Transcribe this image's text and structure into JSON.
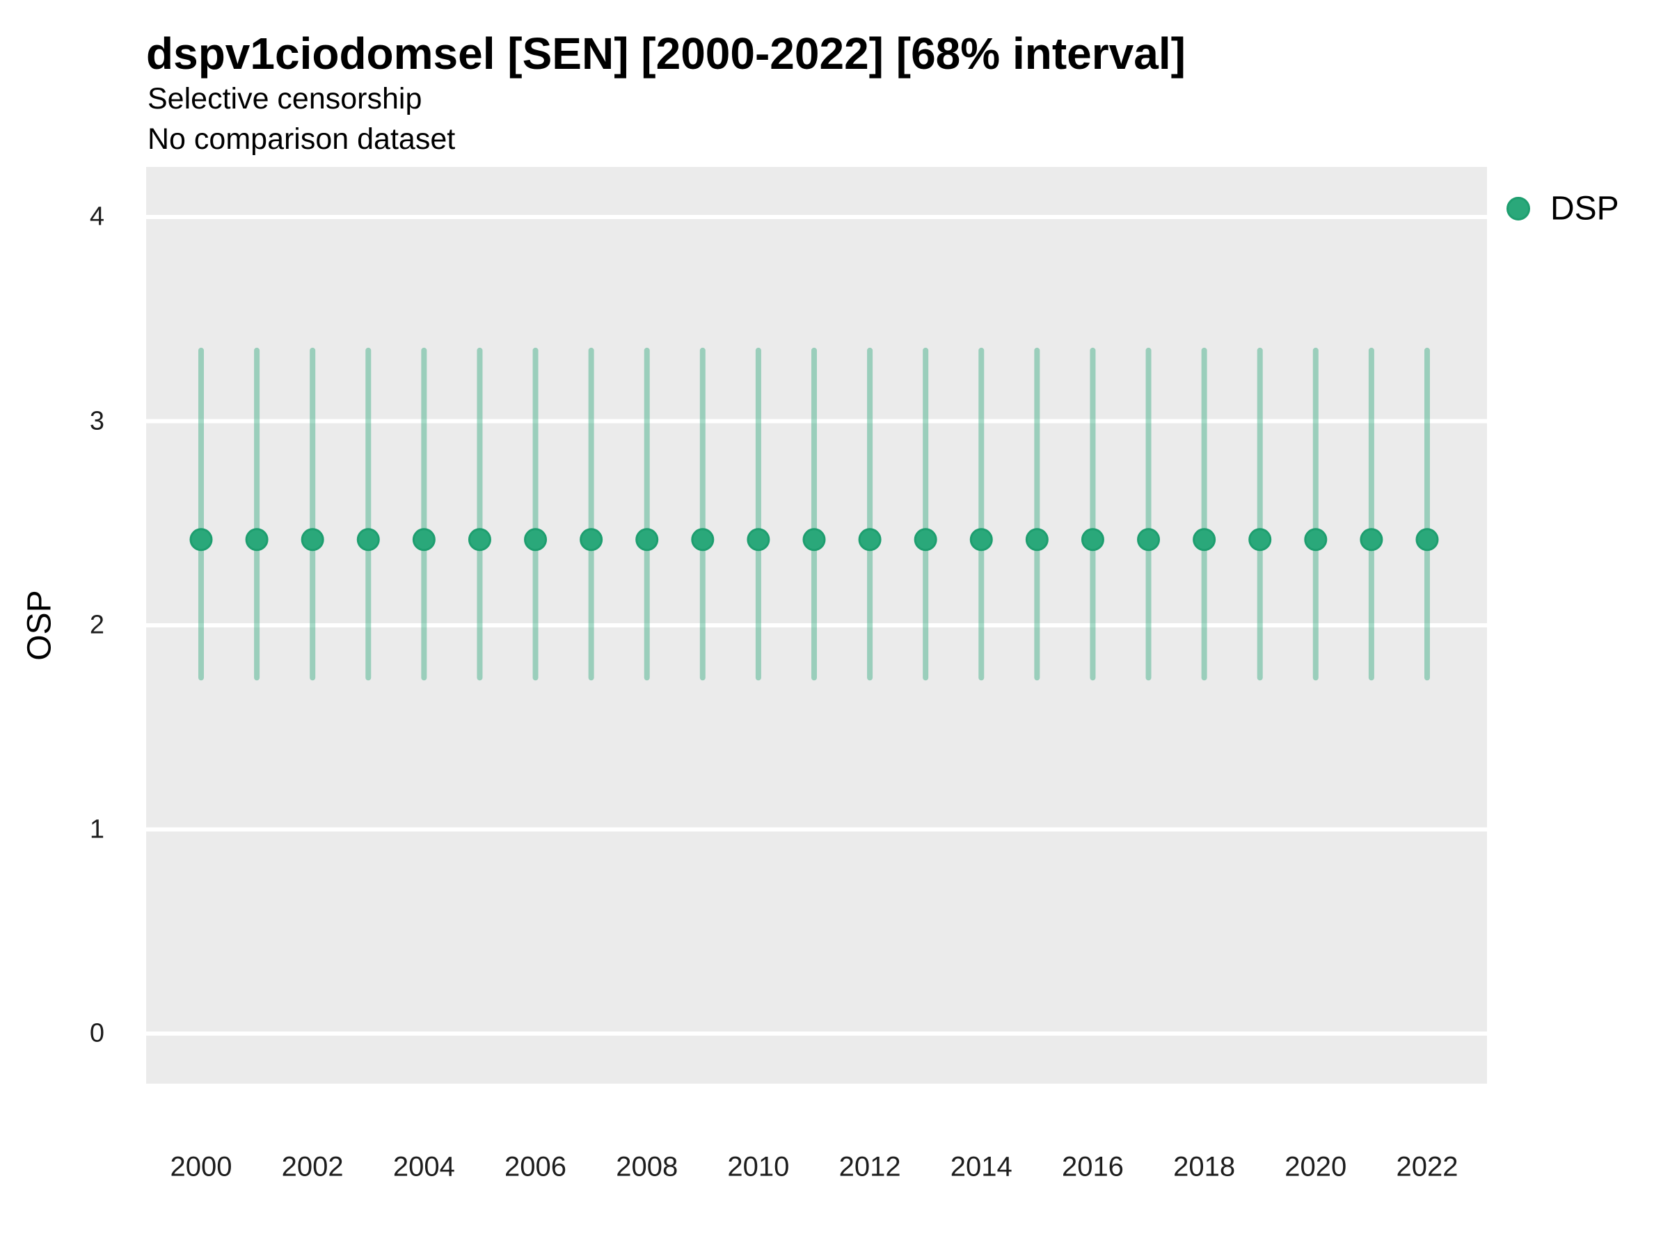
{
  "header": {
    "title": "dspv1ciodomsel [SEN] [2000-2022] [68% interval]",
    "subtitle1": "Selective censorship",
    "subtitle2": "No comparison dataset"
  },
  "legend": {
    "position": "right",
    "items": [
      {
        "label": "DSP",
        "symbol": "circle",
        "color": "#2aa87a"
      }
    ]
  },
  "colors": {
    "point_fill": "#2aa87a",
    "point_stroke": "#1e9e6f",
    "interval_bar": "rgba(42,168,122,0.42)",
    "panel_background": "#ebebeb",
    "gridline": "#ffffff",
    "title_text": "#000000",
    "axis_text": "#1d1d1d"
  },
  "chart_data": {
    "type": "scatter",
    "subtype": "pointrange-error-bars",
    "title": "dspv1ciodomsel [SEN] [2000-2022] [68% interval]",
    "subtitle": "Selective censorship",
    "caption": "No comparison dataset",
    "xlabel": "",
    "ylabel": "OSP",
    "interval_level": "68%",
    "grid": "horizontal-major-only",
    "legend_position": "right",
    "ylim": [
      -0.25,
      4.25
    ],
    "yticks": [
      0,
      1,
      2,
      3,
      4
    ],
    "xticks": [
      2000,
      2002,
      2004,
      2006,
      2008,
      2010,
      2012,
      2014,
      2016,
      2018,
      2020,
      2022
    ],
    "x": [
      2000,
      2001,
      2002,
      2003,
      2004,
      2005,
      2006,
      2007,
      2008,
      2009,
      2010,
      2011,
      2012,
      2013,
      2014,
      2015,
      2016,
      2017,
      2018,
      2019,
      2020,
      2021,
      2022
    ],
    "series": [
      {
        "name": "DSP",
        "values": [
          2.42,
          2.42,
          2.42,
          2.42,
          2.42,
          2.42,
          2.42,
          2.42,
          2.42,
          2.42,
          2.42,
          2.42,
          2.42,
          2.42,
          2.42,
          2.42,
          2.42,
          2.42,
          2.42,
          2.42,
          2.42,
          2.42,
          2.42
        ],
        "lower": [
          1.73,
          1.73,
          1.73,
          1.73,
          1.73,
          1.73,
          1.73,
          1.73,
          1.73,
          1.73,
          1.73,
          1.73,
          1.73,
          1.73,
          1.73,
          1.73,
          1.73,
          1.73,
          1.73,
          1.73,
          1.73,
          1.73,
          1.73
        ],
        "upper": [
          3.36,
          3.36,
          3.36,
          3.36,
          3.36,
          3.36,
          3.36,
          3.36,
          3.36,
          3.36,
          3.36,
          3.36,
          3.36,
          3.36,
          3.36,
          3.36,
          3.36,
          3.36,
          3.36,
          3.36,
          3.36,
          3.36,
          3.36
        ]
      }
    ]
  }
}
